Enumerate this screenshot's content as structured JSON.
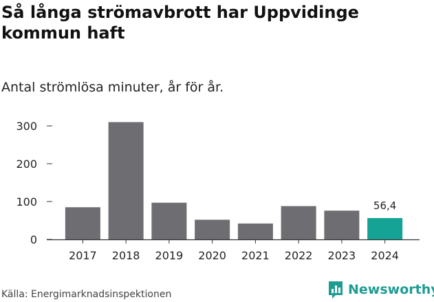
{
  "title": "Så långa strömavbrott har Uppvidinge kommun haft",
  "subtitle": "Antal strömlösa minuter, år för år.",
  "source": "Källa: Energimarknadsinspektionen",
  "brand": {
    "name": "Newsworthy",
    "icon": "newsworthy-logo-icon",
    "color": "#1f9c92"
  },
  "colors": {
    "bar": "#6e6d72",
    "highlight": "#14a394",
    "axis": "#333333",
    "text": "#222222"
  },
  "chart_data": {
    "type": "bar",
    "title": "Så långa strömavbrott har Uppvidinge kommun haft",
    "subtitle": "Antal strömlösa minuter, år för år.",
    "xlabel": "",
    "ylabel": "",
    "categories": [
      "2017",
      "2018",
      "2019",
      "2020",
      "2021",
      "2022",
      "2023",
      "2024"
    ],
    "values": [
      85,
      310,
      97,
      52,
      42,
      88,
      76,
      56.4
    ],
    "highlight_index": 7,
    "data_labels": [
      {
        "index": 7,
        "text": "56,4"
      }
    ],
    "yticks": [
      0,
      100,
      200,
      300
    ],
    "ytick_labels": [
      "0",
      "100",
      "200",
      "300"
    ],
    "ylim": [
      0,
      320
    ],
    "grid": false
  }
}
